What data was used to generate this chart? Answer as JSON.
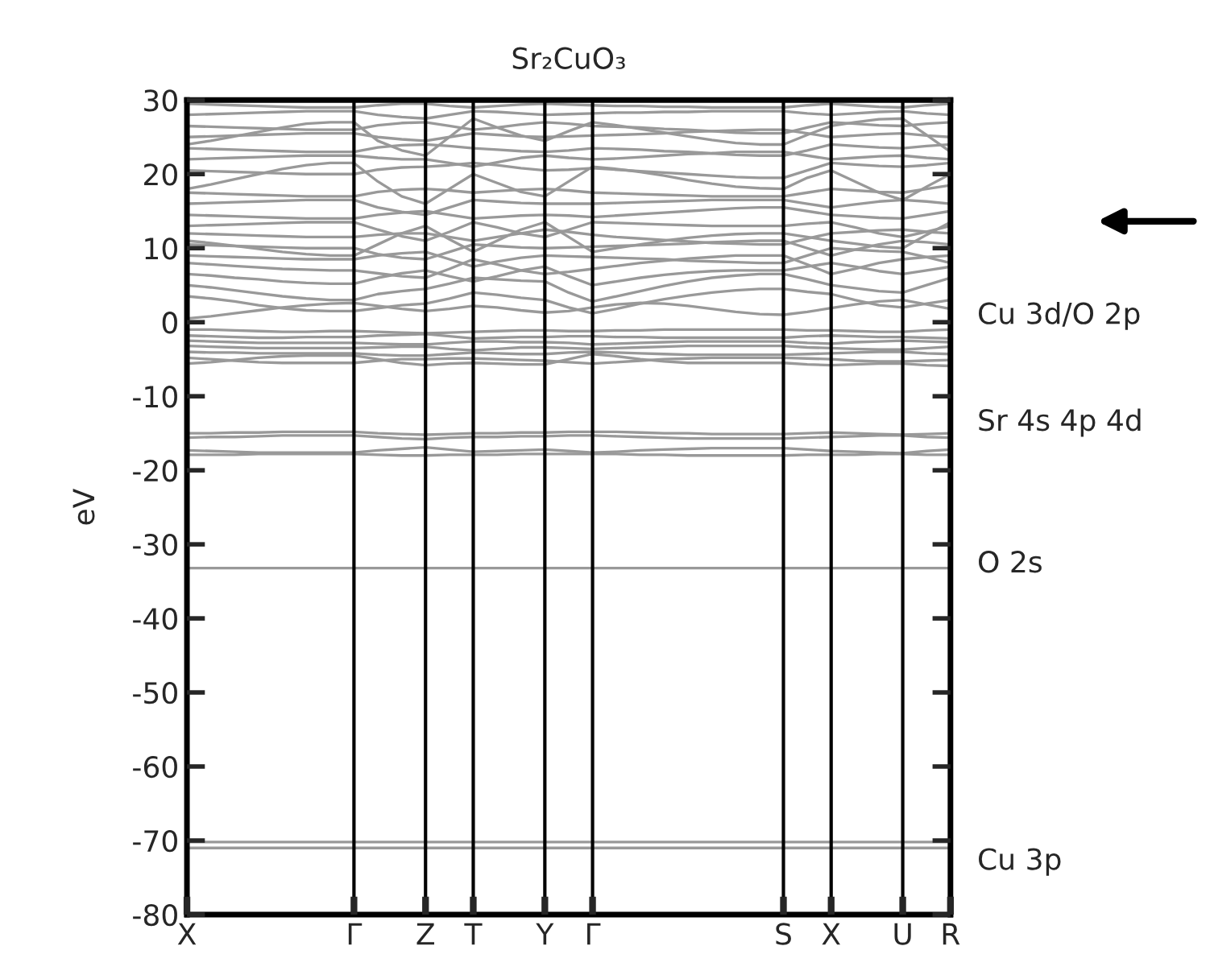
{
  "chart_data": {
    "type": "line",
    "title": "Sr₂CuO₃",
    "ylabel": "eV",
    "categories": [
      "X",
      null,
      null,
      null,
      null,
      null,
      null,
      "Γ",
      null,
      null,
      "Z",
      null,
      "T",
      null,
      null,
      "Y",
      null,
      "Γ",
      null,
      null,
      null,
      null,
      null,
      null,
      null,
      "S",
      null,
      "X",
      null,
      null,
      "U",
      null,
      "R"
    ],
    "ylim": [
      -80,
      30
    ],
    "yticks": [
      -80,
      -70,
      -60,
      -50,
      -40,
      -30,
      -20,
      -10,
      0,
      10,
      20,
      30
    ],
    "grid": "x",
    "legend": false,
    "annotations": [
      "Cu 3d/O 2p",
      "Sr 4s 4p 4d",
      "O 2s",
      "Cu 3p"
    ],
    "series": [
      {
        "color": "#999999",
        "values": [
          -1.0,
          -1.0,
          -1.1,
          -1.2,
          -1.3,
          -1.3,
          -1.2,
          -1.2,
          -1.3,
          -1.4,
          -1.5,
          -1.4,
          -1.3,
          -1.2,
          -1.1,
          -1.1,
          -1.2,
          -1.2,
          -1.1,
          -1.1,
          -1.0,
          -1.0,
          -1.0,
          -1.0,
          -1.0,
          -1.0,
          -1.1,
          -1.1,
          -1.2,
          -1.3,
          -1.3,
          -1.1,
          -1.0
        ]
      },
      {
        "color": "#999999",
        "values": [
          -1.8,
          -1.9,
          -2.0,
          -2.1,
          -2.1,
          -2.0,
          -2.0,
          -2.0,
          -1.8,
          -1.7,
          -1.6,
          -1.9,
          -2.2,
          -2.1,
          -2.0,
          -2.0,
          -1.9,
          -1.9,
          -2.0,
          -2.0,
          -2.1,
          -2.1,
          -2.1,
          -2.1,
          -2.1,
          -2.1,
          -1.9,
          -1.8,
          -1.9,
          -2.0,
          -2.0,
          -2.1,
          -2.2
        ]
      },
      {
        "color": "#999999",
        "values": [
          -2.5,
          -2.6,
          -2.7,
          -2.8,
          -2.8,
          -2.8,
          -2.8,
          -2.8,
          -2.9,
          -3.0,
          -3.0,
          -2.8,
          -2.6,
          -2.6,
          -2.7,
          -2.7,
          -2.8,
          -3.0,
          -2.9,
          -2.8,
          -2.7,
          -2.6,
          -2.6,
          -2.6,
          -2.6,
          -2.6,
          -2.8,
          -2.9,
          -2.7,
          -2.6,
          -2.5,
          -2.6,
          -2.7
        ]
      },
      {
        "color": "#999999",
        "values": [
          -3.2,
          -3.3,
          -3.4,
          -3.5,
          -3.5,
          -3.5,
          -3.5,
          -3.5,
          -3.4,
          -3.3,
          -3.3,
          -3.6,
          -3.8,
          -3.6,
          -3.4,
          -3.4,
          -3.5,
          -3.6,
          -3.5,
          -3.4,
          -3.3,
          -3.2,
          -3.2,
          -3.2,
          -3.2,
          -3.2,
          -3.4,
          -3.5,
          -3.6,
          -3.7,
          -3.7,
          -3.5,
          -3.3
        ]
      },
      {
        "color": "#999999",
        "values": [
          -4.0,
          -4.1,
          -4.1,
          -4.2,
          -4.2,
          -4.2,
          -4.2,
          -4.2,
          -4.4,
          -4.5,
          -4.5,
          -4.3,
          -4.1,
          -4.2,
          -4.3,
          -4.3,
          -4.1,
          -4.0,
          -4.1,
          -4.2,
          -4.3,
          -4.4,
          -4.4,
          -4.4,
          -4.4,
          -4.4,
          -4.3,
          -4.2,
          -4.1,
          -4.0,
          -4.0,
          -4.2,
          -4.3
        ]
      },
      {
        "color": "#999999",
        "values": [
          -4.8,
          -5.0,
          -5.2,
          -5.4,
          -5.5,
          -5.5,
          -5.5,
          -5.5,
          -5.2,
          -5.0,
          -5.0,
          -4.9,
          -4.9,
          -5.0,
          -5.1,
          -5.2,
          -5.4,
          -5.6,
          -5.4,
          -5.2,
          -5.0,
          -4.9,
          -4.8,
          -4.8,
          -4.8,
          -4.8,
          -4.9,
          -5.0,
          -5.2,
          -5.3,
          -5.3,
          -5.2,
          -5.1
        ]
      },
      {
        "color": "#999999",
        "values": [
          -5.6,
          -5.4,
          -5.1,
          -4.8,
          -4.6,
          -4.5,
          -4.5,
          -4.5,
          -5.0,
          -5.5,
          -5.8,
          -5.6,
          -5.5,
          -5.6,
          -5.7,
          -5.7,
          -5.0,
          -4.3,
          -4.6,
          -5.0,
          -5.3,
          -5.5,
          -5.5,
          -5.5,
          -5.5,
          -5.5,
          -5.7,
          -5.8,
          -5.7,
          -5.6,
          -5.6,
          -5.8,
          -5.9
        ]
      },
      {
        "color": "#999999",
        "values": [
          -15.0,
          -15.0,
          -14.9,
          -14.9,
          -14.8,
          -14.8,
          -14.8,
          -14.8,
          -15.0,
          -15.1,
          -15.2,
          -15.1,
          -15.0,
          -15.0,
          -14.9,
          -14.9,
          -14.8,
          -14.8,
          -14.8,
          -14.9,
          -15.0,
          -15.0,
          -15.1,
          -15.1,
          -15.1,
          -15.1,
          -15.0,
          -14.9,
          -15.0,
          -15.1,
          -15.2,
          -15.1,
          -15.0
        ]
      },
      {
        "color": "#999999",
        "values": [
          -15.6,
          -15.5,
          -15.5,
          -15.4,
          -15.3,
          -15.3,
          -15.3,
          -15.3,
          -15.5,
          -15.7,
          -15.8,
          -15.6,
          -15.5,
          -15.5,
          -15.4,
          -15.4,
          -15.3,
          -15.3,
          -15.4,
          -15.5,
          -15.6,
          -15.7,
          -15.7,
          -15.7,
          -15.7,
          -15.7,
          -15.6,
          -15.5,
          -15.4,
          -15.3,
          -15.3,
          -15.5,
          -15.6
        ]
      },
      {
        "color": "#999999",
        "values": [
          -17.3,
          -17.4,
          -17.5,
          -17.6,
          -17.6,
          -17.6,
          -17.6,
          -17.6,
          -17.3,
          -17.1,
          -16.9,
          -17.2,
          -17.5,
          -17.4,
          -17.3,
          -17.2,
          -17.4,
          -17.6,
          -17.5,
          -17.3,
          -17.2,
          -17.1,
          -17.0,
          -17.0,
          -17.0,
          -17.0,
          -17.2,
          -17.4,
          -17.5,
          -17.6,
          -17.7,
          -17.4,
          -17.2
        ]
      },
      {
        "color": "#999999",
        "values": [
          -17.9,
          -17.9,
          -17.9,
          -17.8,
          -17.8,
          -17.8,
          -17.8,
          -17.8,
          -17.9,
          -18.0,
          -18.0,
          -17.9,
          -17.9,
          -17.9,
          -17.8,
          -17.8,
          -17.8,
          -17.8,
          -17.8,
          -17.9,
          -17.9,
          -18.0,
          -18.0,
          -18.0,
          -18.0,
          -18.0,
          -17.9,
          -17.9,
          -17.9,
          -17.8,
          -17.8,
          -17.9,
          -17.9
        ]
      },
      {
        "color": "#999999",
        "values": [
          -33.2,
          -33.2,
          -33.2,
          -33.2,
          -33.2,
          -33.2,
          -33.2,
          -33.2,
          -33.2,
          -33.2,
          -33.2,
          -33.2,
          -33.2,
          -33.2,
          -33.2,
          -33.2,
          -33.2,
          -33.2,
          -33.2,
          -33.2,
          -33.2,
          -33.2,
          -33.2,
          -33.2,
          -33.2,
          -33.2,
          -33.2,
          -33.2,
          -33.2,
          -33.2,
          -33.2,
          -33.2,
          -33.2
        ]
      },
      {
        "color": "#999999",
        "values": [
          -70.2,
          -70.2,
          -70.2,
          -70.2,
          -70.2,
          -70.2,
          -70.2,
          -70.2,
          -70.2,
          -70.2,
          -70.2,
          -70.2,
          -70.2,
          -70.2,
          -70.2,
          -70.2,
          -70.2,
          -70.2,
          -70.2,
          -70.2,
          -70.2,
          -70.2,
          -70.2,
          -70.2,
          -70.2,
          -70.2,
          -70.2,
          -70.2,
          -70.2,
          -70.2,
          -70.2,
          -70.2,
          -70.2
        ]
      },
      {
        "color": "#999999",
        "values": [
          -71.0,
          -71.0,
          -71.0,
          -71.0,
          -71.0,
          -71.0,
          -71.0,
          -71.0,
          -71.0,
          -71.0,
          -71.0,
          -71.0,
          -71.0,
          -71.0,
          -71.0,
          -71.0,
          -71.0,
          -71.0,
          -71.0,
          -71.0,
          -71.0,
          -71.0,
          -71.0,
          -71.0,
          -71.0,
          -71.0,
          -71.0,
          -71.0,
          -71.0,
          -71.0,
          -71.0,
          -71.0,
          -71.0
        ]
      },
      {
        "color": "#999999",
        "values": [
          0.5,
          0.8,
          1.2,
          1.6,
          2.0,
          2.3,
          2.5,
          2.6,
          2.2,
          1.8,
          1.5,
          1.8,
          2.2,
          2.0,
          1.6,
          1.3,
          1.5,
          2.0,
          2.4,
          2.6,
          2.5,
          2.2,
          1.8,
          1.4,
          1.1,
          1.0,
          1.4,
          1.9,
          2.4,
          2.8,
          3.0,
          2.4,
          1.8
        ]
      },
      {
        "color": "#999999",
        "values": [
          3.5,
          3.2,
          2.8,
          2.3,
          1.9,
          1.6,
          1.5,
          1.5,
          1.9,
          2.3,
          2.5,
          3.2,
          4.0,
          3.7,
          3.3,
          3.0,
          2.0,
          1.2,
          1.8,
          2.5,
          3.1,
          3.6,
          4.0,
          4.3,
          4.5,
          4.5,
          4.1,
          3.8,
          3.0,
          2.3,
          2.0,
          2.5,
          3.0
        ]
      },
      {
        "color": "#999999",
        "values": [
          5.0,
          4.7,
          4.3,
          3.9,
          3.5,
          3.2,
          3.0,
          3.0,
          3.8,
          4.2,
          4.5,
          5.2,
          6.0,
          5.8,
          5.6,
          5.5,
          4.0,
          2.8,
          3.5,
          4.2,
          4.9,
          5.5,
          6.0,
          6.3,
          6.5,
          6.5,
          5.8,
          5.0,
          4.6,
          4.2,
          4.0,
          5.0,
          6.0
        ]
      },
      {
        "color": "#999999",
        "values": [
          6.5,
          6.3,
          6.0,
          5.8,
          5.5,
          5.3,
          5.2,
          5.2,
          6.0,
          6.6,
          7.0,
          6.2,
          5.5,
          6.2,
          7.0,
          7.5,
          6.2,
          5.0,
          5.5,
          6.0,
          6.4,
          6.7,
          6.9,
          7.0,
          7.0,
          7.0,
          7.5,
          8.0,
          7.5,
          6.9,
          6.5,
          7.0,
          7.5
        ]
      },
      {
        "color": "#999999",
        "values": [
          8.0,
          7.8,
          7.6,
          7.4,
          7.2,
          7.1,
          7.0,
          7.0,
          6.6,
          6.2,
          6.0,
          7.2,
          8.5,
          7.8,
          7.0,
          6.5,
          6.8,
          7.2,
          7.6,
          8.0,
          8.3,
          8.6,
          8.8,
          9.0,
          9.0,
          9.0,
          7.8,
          6.5,
          7.2,
          8.0,
          8.5,
          8.8,
          9.0
        ]
      },
      {
        "color": "#999999",
        "values": [
          9.0,
          8.9,
          8.8,
          8.7,
          8.6,
          8.5,
          8.5,
          8.5,
          9.0,
          9.3,
          9.5,
          8.5,
          7.5,
          8.2,
          8.7,
          9.0,
          8.9,
          8.8,
          8.7,
          8.6,
          8.5,
          8.3,
          8.2,
          8.1,
          8.0,
          8.0,
          9.0,
          10.0,
          9.8,
          9.6,
          9.5,
          8.8,
          8.0
        ]
      },
      {
        "color": "#999999",
        "values": [
          10.5,
          10.4,
          10.3,
          10.2,
          10.1,
          10.0,
          10.0,
          10.0,
          9.2,
          8.7,
          8.5,
          9.5,
          10.5,
          10.3,
          10.1,
          10.0,
          10.1,
          10.2,
          10.3,
          10.4,
          10.5,
          10.6,
          10.8,
          10.9,
          11.0,
          11.0,
          10.0,
          9.0,
          9.8,
          10.5,
          11.0,
          10.8,
          10.5
        ]
      },
      {
        "color": "#999999",
        "values": [
          11.0,
          10.7,
          10.3,
          9.9,
          9.5,
          9.2,
          9.0,
          9.0,
          10.5,
          12.0,
          13.0,
          11.2,
          9.5,
          11.0,
          12.5,
          13.5,
          11.5,
          9.5,
          10.0,
          10.5,
          11.0,
          11.4,
          11.7,
          11.9,
          12.0,
          12.0,
          11.5,
          11.0,
          10.6,
          10.2,
          10.0,
          11.8,
          13.5
        ]
      },
      {
        "color": "#999999",
        "values": [
          12.0,
          11.9,
          11.8,
          11.7,
          11.6,
          11.5,
          11.5,
          11.5,
          11.8,
          12.0,
          12.0,
          11.5,
          11.0,
          11.5,
          12.0,
          12.5,
          12.2,
          11.8,
          11.5,
          11.3,
          11.1,
          10.9,
          10.7,
          10.6,
          10.5,
          10.5,
          11.3,
          12.0,
          12.2,
          12.4,
          12.5,
          12.2,
          12.0
        ]
      },
      {
        "color": "#999999",
        "values": [
          13.0,
          13.1,
          13.2,
          13.3,
          13.4,
          13.5,
          13.5,
          13.5,
          12.5,
          11.6,
          11.0,
          12.2,
          13.5,
          12.8,
          12.0,
          11.5,
          12.5,
          13.5,
          13.4,
          13.3,
          13.2,
          13.1,
          13.0,
          13.0,
          13.0,
          13.0,
          13.3,
          13.5,
          12.8,
          12.0,
          11.5,
          12.2,
          13.0
        ]
      },
      {
        "color": "#999999",
        "values": [
          14.5,
          14.4,
          14.3,
          14.2,
          14.1,
          14.0,
          14.0,
          14.0,
          14.5,
          14.8,
          15.0,
          14.5,
          14.0,
          14.2,
          14.4,
          14.5,
          14.4,
          14.2,
          14.4,
          14.6,
          14.8,
          15.0,
          15.2,
          15.4,
          15.5,
          15.5,
          15.0,
          14.5,
          14.3,
          14.1,
          14.0,
          14.5,
          15.0
        ]
      },
      {
        "color": "#999999",
        "values": [
          16.0,
          16.1,
          16.2,
          16.3,
          16.4,
          16.5,
          16.5,
          16.5,
          15.5,
          14.9,
          14.5,
          15.5,
          16.5,
          16.3,
          16.1,
          16.0,
          16.0,
          16.0,
          16.1,
          16.2,
          16.3,
          16.4,
          16.5,
          16.5,
          16.5,
          16.5,
          16.0,
          15.5,
          15.9,
          16.3,
          16.5,
          16.3,
          16.0
        ]
      },
      {
        "color": "#999999",
        "values": [
          18.0,
          18.6,
          19.3,
          20.0,
          20.7,
          21.2,
          21.5,
          21.5,
          19.0,
          17.0,
          16.0,
          18.0,
          20.0,
          18.8,
          17.6,
          17.0,
          19.0,
          21.0,
          20.7,
          20.3,
          19.8,
          19.2,
          18.7,
          18.3,
          18.1,
          18.0,
          19.5,
          20.5,
          19.0,
          17.5,
          16.5,
          18.3,
          20.0
        ]
      },
      {
        "color": "#999999",
        "values": [
          17.5,
          17.4,
          17.3,
          17.2,
          17.1,
          17.0,
          17.0,
          17.0,
          17.6,
          17.9,
          18.0,
          17.8,
          17.5,
          17.7,
          17.9,
          18.0,
          17.8,
          17.5,
          17.4,
          17.3,
          17.2,
          17.1,
          17.0,
          17.0,
          17.0,
          17.0,
          17.5,
          18.0,
          17.8,
          17.6,
          17.5,
          18.0,
          18.5
        ]
      },
      {
        "color": "#999999",
        "values": [
          20.5,
          20.4,
          20.3,
          20.2,
          20.1,
          20.0,
          20.0,
          20.0,
          20.6,
          20.9,
          21.0,
          21.2,
          21.5,
          21.2,
          20.8,
          20.5,
          20.6,
          20.8,
          20.6,
          20.4,
          20.2,
          20.0,
          19.8,
          19.6,
          19.5,
          19.5,
          20.5,
          21.5,
          21.3,
          21.1,
          21.0,
          21.2,
          21.5
        ]
      },
      {
        "color": "#999999",
        "values": [
          22.0,
          22.1,
          22.2,
          22.3,
          22.4,
          22.5,
          22.5,
          22.5,
          22.2,
          22.0,
          22.0,
          21.5,
          21.0,
          21.6,
          22.2,
          22.5,
          22.2,
          22.0,
          22.1,
          22.3,
          22.5,
          22.7,
          22.8,
          23.0,
          23.0,
          23.0,
          22.5,
          22.0,
          22.2,
          22.4,
          22.5,
          22.2,
          22.0
        ]
      },
      {
        "color": "#999999",
        "values": [
          24.0,
          24.5,
          25.1,
          25.7,
          26.3,
          26.8,
          27.0,
          27.0,
          24.5,
          23.2,
          22.5,
          25.0,
          27.5,
          26.3,
          25.2,
          24.5,
          25.8,
          27.0,
          26.6,
          26.1,
          25.6,
          25.1,
          24.6,
          24.2,
          24.0,
          24.0,
          25.3,
          26.5,
          27.0,
          27.4,
          27.5,
          25.3,
          23.0
        ]
      },
      {
        "color": "#999999",
        "values": [
          23.5,
          23.4,
          23.3,
          23.2,
          23.1,
          23.0,
          23.0,
          23.0,
          23.6,
          23.9,
          24.0,
          23.8,
          23.5,
          23.3,
          23.1,
          23.0,
          23.2,
          23.5,
          23.4,
          23.3,
          23.1,
          23.0,
          22.8,
          22.6,
          22.5,
          22.5,
          23.2,
          24.0,
          23.8,
          23.6,
          23.5,
          23.8,
          24.0
        ]
      },
      {
        "color": "#999999",
        "values": [
          25.0,
          25.1,
          25.2,
          25.3,
          25.4,
          25.5,
          25.5,
          25.5,
          25.0,
          24.7,
          24.5,
          25.0,
          25.5,
          25.3,
          25.1,
          25.0,
          25.1,
          25.2,
          25.3,
          25.4,
          25.5,
          25.7,
          25.8,
          25.9,
          26.0,
          26.0,
          25.5,
          25.0,
          25.2,
          25.4,
          25.5,
          25.2,
          25.0
        ]
      },
      {
        "color": "#999999",
        "values": [
          26.5,
          26.4,
          26.3,
          26.2,
          26.1,
          26.0,
          26.0,
          26.0,
          26.6,
          26.9,
          27.0,
          26.5,
          26.0,
          26.3,
          26.7,
          27.0,
          26.8,
          26.5,
          26.4,
          26.3,
          26.1,
          26.0,
          25.8,
          25.6,
          25.5,
          25.5,
          26.3,
          27.0,
          26.8,
          26.6,
          26.5,
          26.8,
          27.0
        ]
      },
      {
        "color": "#999999",
        "values": [
          28.0,
          28.1,
          28.2,
          28.3,
          28.4,
          28.5,
          28.5,
          28.5,
          28.0,
          27.7,
          27.5,
          28.0,
          28.5,
          28.4,
          28.2,
          28.0,
          28.1,
          28.2,
          28.3,
          28.3,
          28.4,
          28.4,
          28.5,
          28.5,
          28.5,
          28.5,
          28.2,
          28.0,
          28.2,
          28.4,
          28.5,
          28.2,
          28.0
        ]
      },
      {
        "color": "#999999",
        "values": [
          29.5,
          29.4,
          29.3,
          29.2,
          29.1,
          29.0,
          29.0,
          29.0,
          29.3,
          29.5,
          29.5,
          29.2,
          29.0,
          29.2,
          29.4,
          29.5,
          29.4,
          29.3,
          29.2,
          29.2,
          29.1,
          29.1,
          29.0,
          29.0,
          29.0,
          29.0,
          29.3,
          29.5,
          29.3,
          29.1,
          29.0,
          29.3,
          29.5
        ]
      }
    ]
  }
}
